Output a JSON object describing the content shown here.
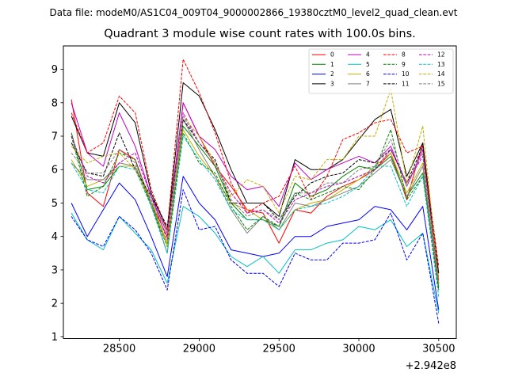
{
  "suptitle": "Data file: modeM0/AS1C04_009T04_9000002866_19380cztM0_level2_quad_clean.evt",
  "chart_data": {
    "type": "line",
    "title": "Quadrant 3 module wise count rates with 100.0s bins.",
    "xlabel": "",
    "ylabel": "",
    "x_offset_label": "+2.942e8",
    "xlim": [
      28150,
      30610
    ],
    "ylim": [
      0.95,
      9.7
    ],
    "x_ticks": [
      28500,
      29000,
      29500,
      30000,
      30500
    ],
    "y_ticks": [
      1,
      2,
      3,
      4,
      5,
      6,
      7,
      8,
      9
    ],
    "legend_position": "upper right",
    "x": [
      28200,
      28300,
      28400,
      28500,
      28600,
      28700,
      28800,
      28900,
      29000,
      29100,
      29200,
      29300,
      29400,
      29500,
      29600,
      29700,
      29800,
      29900,
      30000,
      30100,
      30200,
      30300,
      30400,
      30500
    ],
    "series": [
      {
        "name": "0",
        "color": "#ff0000",
        "dash": "solid",
        "values": [
          8.1,
          5.3,
          4.9,
          6.6,
          6.3,
          5.0,
          4.0,
          8.0,
          7.0,
          6.1,
          5.5,
          4.8,
          4.7,
          3.8,
          4.8,
          4.7,
          5.2,
          5.5,
          5.7,
          6.0,
          6.5,
          5.1,
          6.8,
          2.7
        ]
      },
      {
        "name": "1",
        "color": "#008000",
        "dash": "solid",
        "values": [
          7.1,
          5.4,
          5.5,
          6.1,
          6.1,
          5.0,
          3.8,
          7.3,
          6.7,
          6.1,
          5.0,
          4.5,
          4.5,
          4.3,
          5.6,
          5.2,
          5.4,
          5.8,
          6.1,
          6.0,
          6.4,
          5.2,
          5.9,
          2.5
        ]
      },
      {
        "name": "2",
        "color": "#0000ff",
        "dash": "solid",
        "values": [
          5.0,
          4.0,
          4.8,
          5.6,
          5.1,
          4.0,
          2.8,
          5.8,
          5.0,
          4.5,
          3.6,
          3.5,
          3.4,
          3.5,
          4.0,
          4.0,
          4.3,
          4.4,
          4.5,
          4.9,
          4.8,
          4.2,
          4.9,
          1.8
        ]
      },
      {
        "name": "3",
        "color": "#000000",
        "dash": "solid",
        "values": [
          7.6,
          6.5,
          6.4,
          8.0,
          7.4,
          5.3,
          4.2,
          8.6,
          8.2,
          7.2,
          6.0,
          5.0,
          5.0,
          4.6,
          6.3,
          6.0,
          6.0,
          6.3,
          6.9,
          7.5,
          7.8,
          5.8,
          6.8,
          2.9
        ]
      },
      {
        "name": "4",
        "color": "#c000c0",
        "dash": "solid",
        "values": [
          8.0,
          6.5,
          6.1,
          7.7,
          6.7,
          5.2,
          4.1,
          8.0,
          7.0,
          6.6,
          5.8,
          5.4,
          5.5,
          4.9,
          6.2,
          5.7,
          6.0,
          6.2,
          6.4,
          6.2,
          6.7,
          5.5,
          6.6,
          2.6
        ]
      },
      {
        "name": "5",
        "color": "#00c0c0",
        "dash": "solid",
        "values": [
          4.7,
          3.9,
          3.6,
          4.6,
          4.1,
          3.6,
          2.6,
          4.9,
          4.6,
          4.1,
          3.4,
          3.1,
          3.4,
          2.9,
          3.6,
          3.6,
          3.8,
          3.9,
          4.3,
          4.2,
          4.5,
          3.7,
          4.1,
          1.7
        ]
      },
      {
        "name": "6",
        "color": "#c0b000",
        "dash": "solid",
        "values": [
          6.3,
          5.5,
          5.7,
          6.1,
          6.1,
          4.9,
          3.8,
          7.2,
          6.4,
          5.8,
          5.0,
          4.8,
          4.5,
          4.2,
          4.8,
          5.0,
          5.1,
          5.4,
          5.7,
          6.1,
          6.5,
          5.3,
          6.2,
          2.4
        ]
      },
      {
        "name": "7",
        "color": "#808080",
        "dash": "solid",
        "values": [
          6.2,
          5.7,
          5.7,
          6.2,
          6.1,
          5.0,
          3.5,
          7.5,
          6.6,
          5.8,
          4.8,
          4.1,
          4.6,
          4.2,
          5.0,
          4.9,
          5.1,
          5.3,
          5.5,
          5.9,
          6.3,
          5.2,
          6.1,
          2.4
        ]
      },
      {
        "name": "8",
        "color": "#ff0000",
        "dash": "dashed",
        "values": [
          7.7,
          6.5,
          6.8,
          8.2,
          7.7,
          5.4,
          4.2,
          9.3,
          8.3,
          7.1,
          5.6,
          4.7,
          5.0,
          5.2,
          6.1,
          5.1,
          5.8,
          6.9,
          7.1,
          7.4,
          7.5,
          6.5,
          6.7,
          3.1
        ]
      },
      {
        "name": "9",
        "color": "#008000",
        "dash": "dashed",
        "values": [
          7.0,
          5.2,
          5.5,
          6.5,
          6.3,
          4.9,
          3.7,
          7.1,
          6.2,
          5.9,
          4.9,
          4.2,
          4.6,
          4.3,
          5.3,
          5.1,
          5.3,
          5.5,
          5.4,
          6.0,
          7.2,
          5.1,
          5.8,
          2.4
        ]
      },
      {
        "name": "10",
        "color": "#0000ff",
        "dash": "dashed",
        "values": [
          4.6,
          3.9,
          3.7,
          4.6,
          4.2,
          3.5,
          2.4,
          5.4,
          4.2,
          4.3,
          3.3,
          2.9,
          2.9,
          2.5,
          3.5,
          3.3,
          3.3,
          3.8,
          3.8,
          3.9,
          4.7,
          3.3,
          4.1,
          1.4
        ]
      },
      {
        "name": "11",
        "color": "#000000",
        "dash": "dashed",
        "values": [
          6.8,
          5.9,
          5.8,
          7.1,
          6.0,
          5.2,
          4.3,
          7.5,
          6.8,
          6.3,
          5.0,
          5.0,
          5.0,
          4.5,
          5.2,
          5.6,
          5.8,
          5.9,
          6.3,
          6.2,
          6.6,
          5.6,
          6.7,
          2.6
        ]
      },
      {
        "name": "12",
        "color": "#c000c0",
        "dash": "dashed",
        "values": [
          7.0,
          5.8,
          5.6,
          6.2,
          6.5,
          5.2,
          3.9,
          7.7,
          6.8,
          6.2,
          5.3,
          4.7,
          4.8,
          4.4,
          5.1,
          5.3,
          5.5,
          5.6,
          5.8,
          6.0,
          6.6,
          5.6,
          6.4,
          2.6
        ]
      },
      {
        "name": "13",
        "color": "#00c0c0",
        "dash": "dashed",
        "values": [
          6.2,
          5.4,
          5.3,
          6.1,
          6.0,
          4.9,
          3.5,
          7.0,
          6.3,
          5.7,
          4.8,
          4.5,
          4.5,
          4.2,
          4.8,
          4.9,
          5.0,
          5.2,
          5.5,
          6.1,
          6.1,
          4.9,
          5.8,
          2.2
        ]
      },
      {
        "name": "14",
        "color": "#c0b000",
        "dash": "dashed",
        "values": [
          6.7,
          6.2,
          6.4,
          6.5,
          6.0,
          5.1,
          3.7,
          7.6,
          7.0,
          6.2,
          5.2,
          5.7,
          5.5,
          4.7,
          5.8,
          5.7,
          6.3,
          6.3,
          7.0,
          7.0,
          8.4,
          5.6,
          7.3,
          2.6
        ]
      },
      {
        "name": "15",
        "color": "#808080",
        "dash": "dashed",
        "values": [
          6.5,
          5.9,
          5.9,
          6.6,
          6.2,
          5.1,
          4.1,
          7.6,
          6.8,
          6.2,
          5.1,
          4.6,
          4.8,
          4.5,
          5.3,
          5.3,
          5.6,
          5.6,
          6.0,
          6.1,
          6.9,
          5.5,
          6.5,
          2.6
        ]
      }
    ]
  }
}
